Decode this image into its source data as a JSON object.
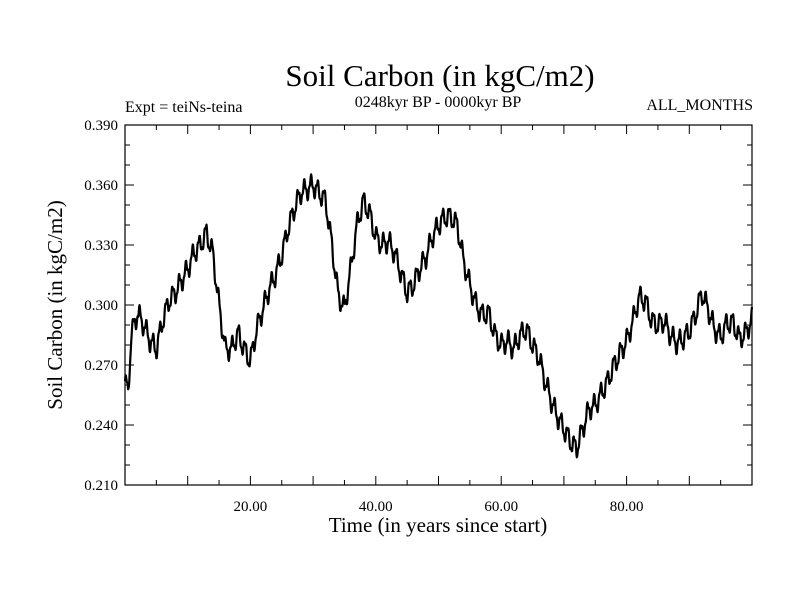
{
  "chart_data": {
    "type": "line",
    "title": "Soil Carbon (in kgC/m2)",
    "subtitle": "0248kyr BP - 0000kyr BP",
    "experiment": "Expt = teiNs-teina",
    "season": "ALL_MONTHS",
    "xlabel": "Time (in years since start)",
    "ylabel": "Soil Carbon (in kgC/m2)",
    "xlim": [
      0,
      100
    ],
    "ylim": [
      0.21,
      0.39
    ],
    "x_ticks": [
      20,
      40,
      60,
      80
    ],
    "x_tick_labels": [
      "20.00",
      "40.00",
      "60.00",
      "80.00"
    ],
    "y_ticks": [
      0.21,
      0.24,
      0.27,
      0.3,
      0.33,
      0.36,
      0.39
    ],
    "y_tick_labels": [
      "0.210",
      "0.240",
      "0.270",
      "0.300",
      "0.330",
      "0.360",
      "0.390"
    ],
    "grid": false,
    "series": [
      {
        "name": "Soil Carbon",
        "color": "#000000",
        "x": [
          0,
          0.5,
          1,
          2,
          3,
          4,
          5,
          6,
          7,
          8,
          9,
          10,
          11,
          12,
          13,
          14,
          15,
          16,
          17,
          18,
          19,
          20,
          21,
          22,
          23,
          24,
          25,
          26,
          27,
          28,
          29,
          30,
          31,
          32,
          33,
          34,
          35,
          36,
          37,
          38,
          39,
          40,
          41,
          42,
          43,
          44,
          45,
          46,
          47,
          48,
          49,
          50,
          51,
          52,
          53,
          54,
          55,
          56,
          57,
          58,
          59,
          60,
          61,
          62,
          63,
          64,
          65,
          66,
          67,
          68,
          69,
          70,
          71,
          72,
          73,
          74,
          75,
          76,
          77,
          78,
          79,
          80,
          81,
          82,
          83,
          84,
          85,
          86,
          87,
          88,
          89,
          90,
          91,
          92,
          93,
          94,
          95,
          96,
          97,
          98,
          99,
          100
        ],
        "y": [
          0.262,
          0.256,
          0.285,
          0.296,
          0.29,
          0.282,
          0.278,
          0.292,
          0.302,
          0.306,
          0.312,
          0.318,
          0.326,
          0.33,
          0.336,
          0.326,
          0.3,
          0.278,
          0.278,
          0.286,
          0.278,
          0.272,
          0.288,
          0.298,
          0.308,
          0.315,
          0.325,
          0.338,
          0.348,
          0.356,
          0.358,
          0.36,
          0.356,
          0.352,
          0.33,
          0.305,
          0.298,
          0.318,
          0.34,
          0.352,
          0.346,
          0.334,
          0.33,
          0.332,
          0.326,
          0.316,
          0.306,
          0.31,
          0.318,
          0.324,
          0.334,
          0.34,
          0.344,
          0.344,
          0.34,
          0.322,
          0.31,
          0.3,
          0.295,
          0.296,
          0.285,
          0.28,
          0.282,
          0.278,
          0.285,
          0.288,
          0.28,
          0.274,
          0.262,
          0.252,
          0.244,
          0.238,
          0.232,
          0.228,
          0.238,
          0.248,
          0.25,
          0.256,
          0.262,
          0.27,
          0.276,
          0.282,
          0.292,
          0.304,
          0.302,
          0.292,
          0.29,
          0.292,
          0.285,
          0.281,
          0.283,
          0.287,
          0.295,
          0.306,
          0.298,
          0.288,
          0.284,
          0.291,
          0.291,
          0.283,
          0.286,
          0.293
        ]
      }
    ]
  }
}
